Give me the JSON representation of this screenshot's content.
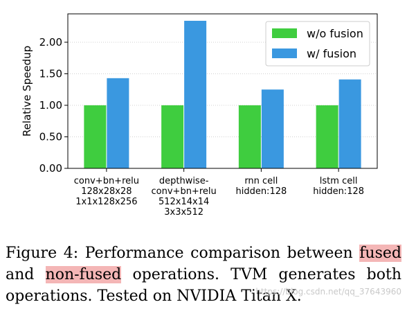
{
  "chart_data": {
    "type": "bar",
    "ylabel": "Relative Speedup",
    "ylim": [
      0,
      2.45
    ],
    "yticks": [
      "0.00",
      "0.50",
      "1.00",
      "1.50",
      "2.00"
    ],
    "grid": true,
    "legend_position": "top-right",
    "categories": [
      [
        "conv+bn+relu",
        "128x28x28",
        "1x1x128x256"
      ],
      [
        "depthwise-",
        "conv+bn+relu",
        "512x14x14",
        "3x3x512"
      ],
      [
        "rnn cell",
        "hidden:128"
      ],
      [
        "lstm cell",
        "hidden:128"
      ]
    ],
    "series": [
      {
        "name": "w/o fusion",
        "color": "#3fcd3f",
        "values": [
          1.0,
          1.0,
          1.0,
          1.0
        ]
      },
      {
        "name": "w/ fusion",
        "color": "#3a98e0",
        "values": [
          1.43,
          2.34,
          1.25,
          1.41
        ]
      }
    ]
  },
  "caption": {
    "part1": "Figure 4:  Performance comparison between ",
    "hl1": "fused",
    "part2": " and ",
    "hl2": "non-fused",
    "part3": " operations.  TVM generates both operations. Tested on NVIDIA Titan X."
  },
  "watermark": "https://blog.csdn.net/qq_37643960"
}
